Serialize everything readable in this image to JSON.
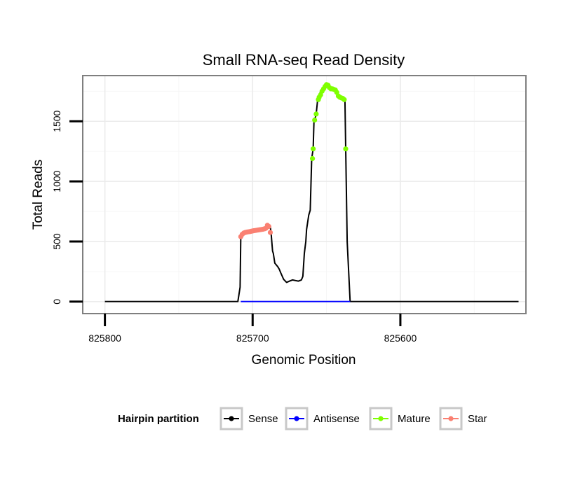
{
  "chart_data": {
    "type": "line",
    "title": "Small RNA-seq Read Density",
    "xlabel": "Genomic Position",
    "ylabel": "Total Reads",
    "xlim": [
      825815,
      825515
    ],
    "x_reversed": true,
    "ylim": [
      -100,
      1880
    ],
    "xticks": [
      825800,
      825700,
      825600
    ],
    "xtick_labels": [
      "825800",
      "825700",
      "825600"
    ],
    "yticks": [
      0,
      500,
      1000,
      1500
    ],
    "ytick_labels": [
      "0",
      "500",
      "1000",
      "1500"
    ],
    "grid": true,
    "legend": {
      "title": "Hairpin partition",
      "position": "bottom",
      "entries": [
        {
          "label": "Sense",
          "color": "#000000"
        },
        {
          "label": "Antisense",
          "color": "#0000ff"
        },
        {
          "label": "Mature",
          "color": "#7fff00"
        },
        {
          "label": "Star",
          "color": "#fa8072"
        }
      ]
    },
    "series": [
      {
        "name": "Sense",
        "color": "#000000",
        "marker": false,
        "x": [
          825800,
          825710,
          825708.5,
          825708,
          825706,
          825700,
          825692,
          825689,
          825688,
          825687.5,
          825686.5,
          825686,
          825685,
          825683,
          825682,
          825681,
          825679,
          825677,
          825675,
          825673,
          825671,
          825669,
          825667,
          825666,
          825665,
          825664,
          825663.5,
          825662,
          825661,
          825660,
          825659,
          825658.5,
          825658,
          825657,
          825656,
          825655,
          825654,
          825652,
          825650,
          825648,
          825646,
          825644,
          825641,
          825638,
          825637.5,
          825637,
          825636,
          825634,
          825520
        ],
        "y": [
          0,
          0,
          120,
          550,
          580,
          600,
          610,
          640,
          620,
          570,
          420,
          400,
          320,
          290,
          270,
          240,
          185,
          160,
          170,
          180,
          175,
          170,
          180,
          210,
          400,
          500,
          600,
          720,
          760,
          1190,
          1270,
          1490,
          1510,
          1560,
          1680,
          1710,
          1750,
          1780,
          1805,
          1790,
          1765,
          1745,
          1710,
          1690,
          1680,
          1270,
          500,
          0,
          0
        ]
      },
      {
        "name": "Antisense",
        "color": "#0000ff",
        "marker": false,
        "x": [
          825708,
          825634
        ],
        "y": [
          0,
          0
        ]
      },
      {
        "name": "Star",
        "color": "#fa8072",
        "marker": true,
        "x": [
          825708,
          825707,
          825706,
          825705,
          825704,
          825703,
          825702,
          825701,
          825700,
          825699,
          825698,
          825697,
          825696,
          825695,
          825694,
          825693,
          825692,
          825691,
          825690,
          825689,
          825688
        ],
        "y": [
          540,
          560,
          570,
          575,
          578,
          580,
          582,
          585,
          588,
          590,
          592,
          594,
          596,
          598,
          600,
          602,
          605,
          610,
          635,
          625,
          575
        ]
      },
      {
        "name": "Mature",
        "color": "#7fff00",
        "marker": true,
        "x": [
          825659.5,
          825659,
          825658,
          825657,
          825655.5,
          825655,
          825654,
          825653,
          825652,
          825651,
          825650,
          825649,
          825648,
          825647,
          825646,
          825645,
          825644,
          825643,
          825642,
          825641,
          825640,
          825639,
          825638,
          825637
        ],
        "y": [
          1190,
          1270,
          1510,
          1560,
          1680,
          1700,
          1720,
          1750,
          1770,
          1790,
          1805,
          1800,
          1780,
          1770,
          1770,
          1765,
          1760,
          1740,
          1710,
          1700,
          1695,
          1690,
          1680,
          1270
        ]
      }
    ]
  }
}
